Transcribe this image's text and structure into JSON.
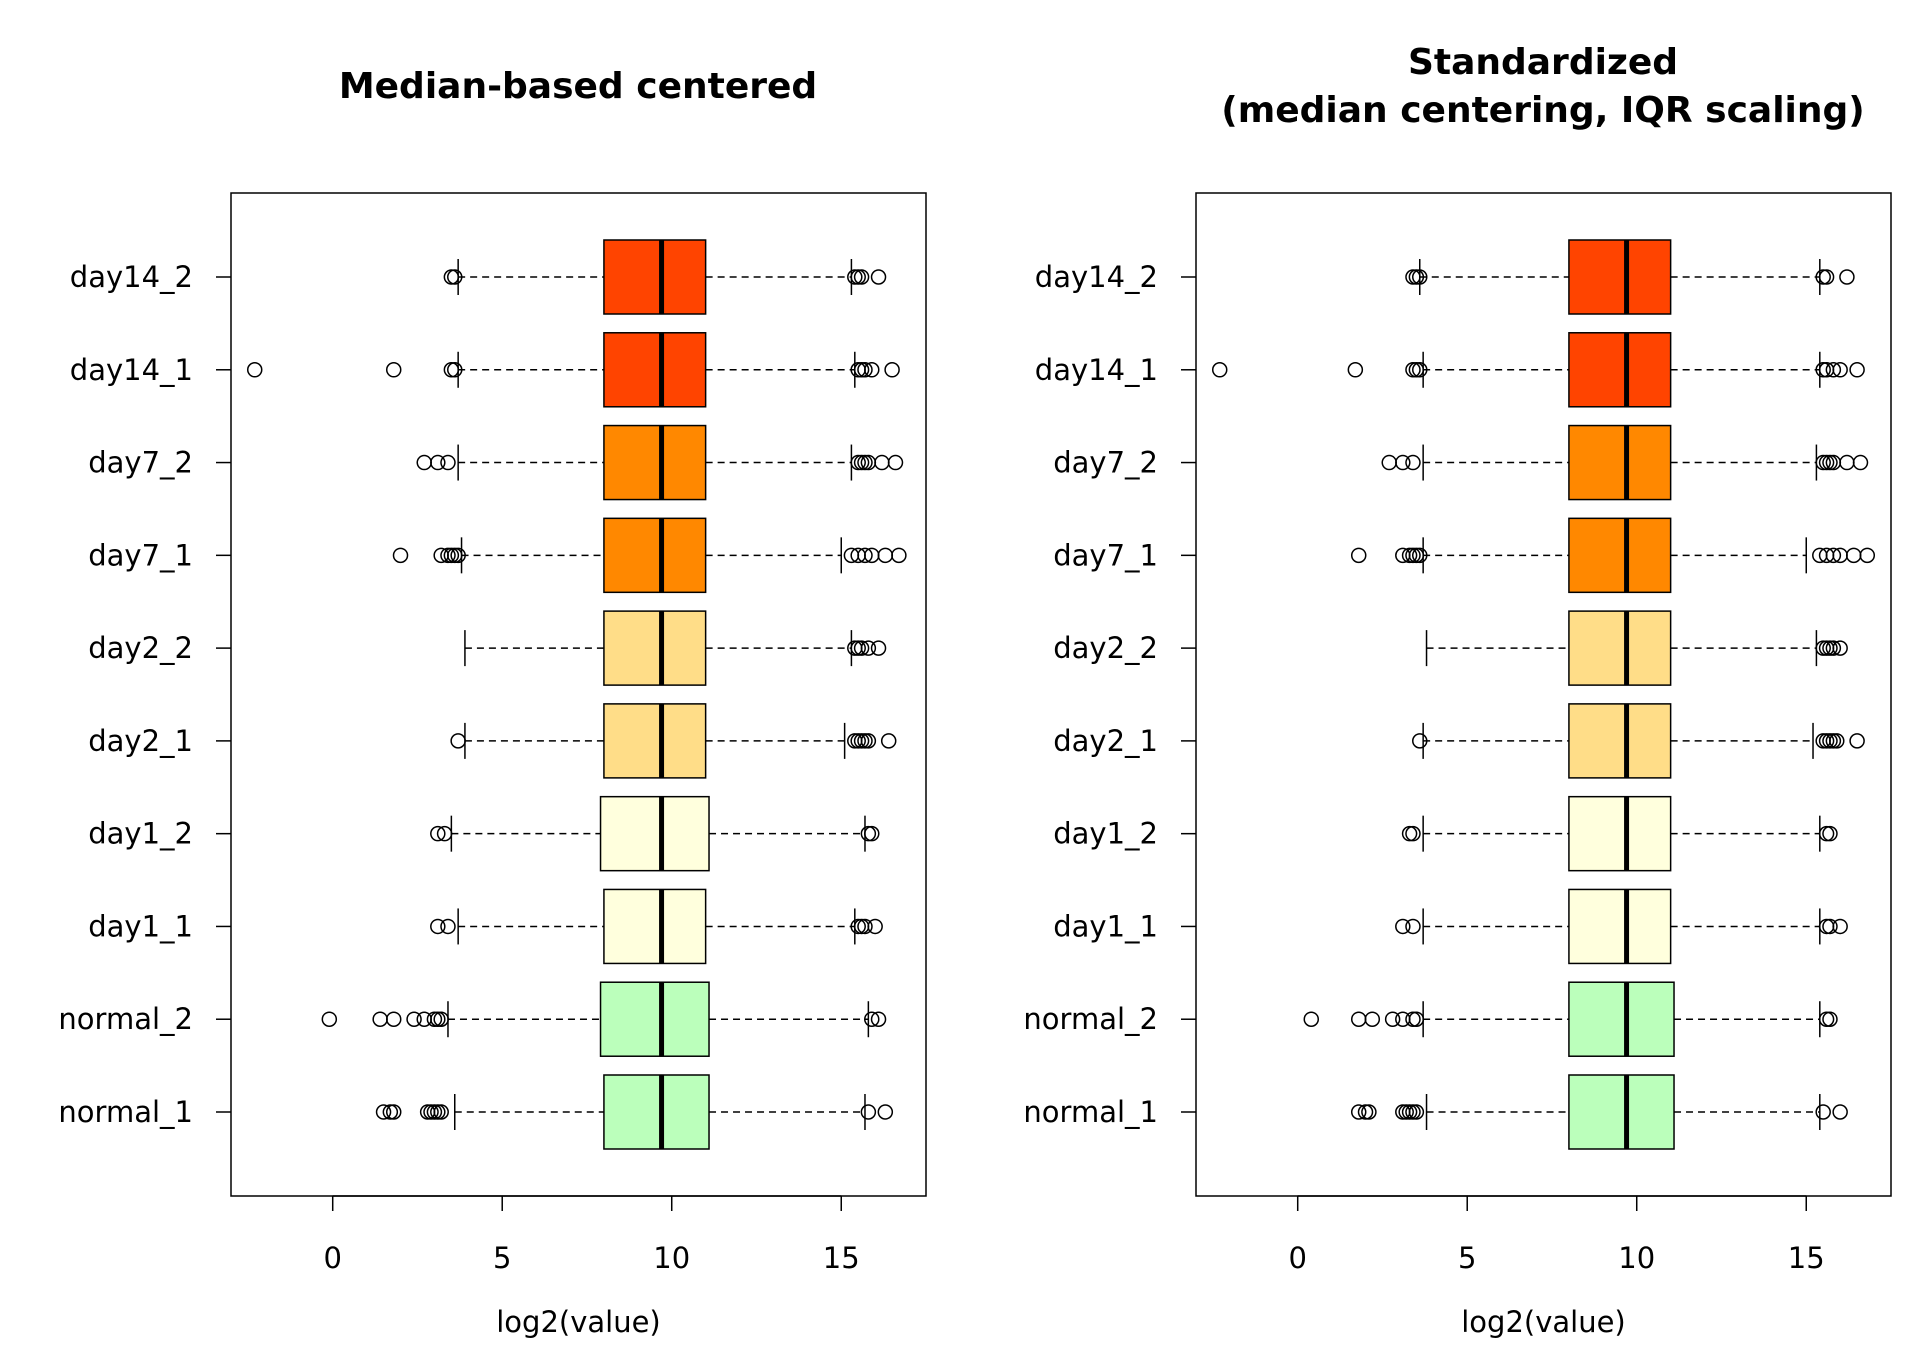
{
  "chart_data": [
    {
      "type": "boxplot",
      "orientation": "horizontal",
      "title": [
        "Median-based centered"
      ],
      "xlabel": "log2(value)",
      "xlim": [
        -3,
        17.5
      ],
      "xticks": [
        0,
        5,
        10,
        15
      ],
      "grid": false,
      "categories": [
        "normal_1",
        "normal_2",
        "day1_1",
        "day1_2",
        "day2_1",
        "day2_2",
        "day7_1",
        "day7_2",
        "day14_1",
        "day14_2"
      ],
      "colors": [
        "#bbffbb",
        "#bbffbb",
        "#ffffdd",
        "#ffffdd",
        "#ffdd88",
        "#ffdd88",
        "#ff8800",
        "#ff8800",
        "#ff4400",
        "#ff4400"
      ],
      "boxes": [
        {
          "label": "normal_1",
          "whisker_low": 3.6,
          "q1": 8.0,
          "median": 9.7,
          "q3": 11.1,
          "whisker_high": 15.7,
          "outliers": [
            1.5,
            1.7,
            1.8,
            2.8,
            2.9,
            3.0,
            3.1,
            3.2,
            15.8,
            16.3
          ]
        },
        {
          "label": "normal_2",
          "whisker_low": 3.4,
          "q1": 7.9,
          "median": 9.7,
          "q3": 11.1,
          "whisker_high": 15.8,
          "outliers": [
            -0.1,
            1.4,
            1.8,
            2.4,
            2.7,
            3.0,
            3.1,
            3.2,
            15.9,
            16.1
          ]
        },
        {
          "label": "day1_1",
          "whisker_low": 3.7,
          "q1": 8.0,
          "median": 9.7,
          "q3": 11.0,
          "whisker_high": 15.4,
          "outliers": [
            3.1,
            3.4,
            15.5,
            15.6,
            15.7,
            16.0
          ]
        },
        {
          "label": "day1_2",
          "whisker_low": 3.5,
          "q1": 7.9,
          "median": 9.7,
          "q3": 11.1,
          "whisker_high": 15.7,
          "outliers": [
            3.1,
            3.3,
            15.8,
            15.9
          ]
        },
        {
          "label": "day2_1",
          "whisker_low": 3.9,
          "q1": 8.0,
          "median": 9.7,
          "q3": 11.0,
          "whisker_high": 15.1,
          "outliers": [
            3.7,
            15.4,
            15.5,
            15.6,
            15.7,
            15.8,
            16.4
          ]
        },
        {
          "label": "day2_2",
          "whisker_low": 3.9,
          "q1": 8.0,
          "median": 9.7,
          "q3": 11.0,
          "whisker_high": 15.3,
          "outliers": [
            15.4,
            15.5,
            15.6,
            15.8,
            16.1
          ]
        },
        {
          "label": "day7_1",
          "whisker_low": 3.8,
          "q1": 8.0,
          "median": 9.7,
          "q3": 11.0,
          "whisker_high": 15.0,
          "outliers": [
            2.0,
            3.2,
            3.4,
            3.5,
            3.6,
            3.7,
            15.3,
            15.5,
            15.7,
            15.9,
            16.3,
            16.7
          ]
        },
        {
          "label": "day7_2",
          "whisker_low": 3.7,
          "q1": 8.0,
          "median": 9.7,
          "q3": 11.0,
          "whisker_high": 15.3,
          "outliers": [
            2.7,
            3.1,
            3.4,
            15.5,
            15.6,
            15.7,
            15.8,
            16.2,
            16.6
          ]
        },
        {
          "label": "day14_1",
          "whisker_low": 3.7,
          "q1": 8.0,
          "median": 9.7,
          "q3": 11.0,
          "whisker_high": 15.4,
          "outliers": [
            -2.3,
            1.8,
            3.5,
            3.6,
            15.5,
            15.6,
            15.7,
            15.9,
            16.5
          ]
        },
        {
          "label": "day14_2",
          "whisker_low": 3.7,
          "q1": 8.0,
          "median": 9.7,
          "q3": 11.0,
          "whisker_high": 15.3,
          "outliers": [
            3.5,
            3.6,
            15.4,
            15.5,
            15.6,
            16.1
          ]
        }
      ]
    },
    {
      "type": "boxplot",
      "orientation": "horizontal",
      "title": [
        "Standardized",
        "(median centering, IQR scaling)"
      ],
      "xlabel": "log2(value)",
      "xlim": [
        -3,
        17.5
      ],
      "xticks": [
        0,
        5,
        10,
        15
      ],
      "grid": false,
      "categories": [
        "normal_1",
        "normal_2",
        "day1_1",
        "day1_2",
        "day2_1",
        "day2_2",
        "day7_1",
        "day7_2",
        "day14_1",
        "day14_2"
      ],
      "colors": [
        "#bbffbb",
        "#bbffbb",
        "#ffffdd",
        "#ffffdd",
        "#ffdd88",
        "#ffdd88",
        "#ff8800",
        "#ff8800",
        "#ff4400",
        "#ff4400"
      ],
      "boxes": [
        {
          "label": "normal_1",
          "whisker_low": 3.8,
          "q1": 8.0,
          "median": 9.7,
          "q3": 11.1,
          "whisker_high": 15.4,
          "outliers": [
            1.8,
            2.0,
            2.1,
            3.1,
            3.2,
            3.3,
            3.4,
            3.5,
            15.5,
            16.0
          ]
        },
        {
          "label": "normal_2",
          "whisker_low": 3.7,
          "q1": 8.0,
          "median": 9.7,
          "q3": 11.1,
          "whisker_high": 15.4,
          "outliers": [
            0.4,
            1.8,
            2.2,
            2.8,
            3.1,
            3.4,
            3.5,
            15.6,
            15.7
          ]
        },
        {
          "label": "day1_1",
          "whisker_low": 3.7,
          "q1": 8.0,
          "median": 9.7,
          "q3": 11.0,
          "whisker_high": 15.4,
          "outliers": [
            3.1,
            3.4,
            15.6,
            15.7,
            16.0
          ]
        },
        {
          "label": "day1_2",
          "whisker_low": 3.7,
          "q1": 8.0,
          "median": 9.7,
          "q3": 11.0,
          "whisker_high": 15.4,
          "outliers": [
            3.3,
            3.4,
            15.6,
            15.7
          ]
        },
        {
          "label": "day2_1",
          "whisker_low": 3.7,
          "q1": 8.0,
          "median": 9.7,
          "q3": 11.0,
          "whisker_high": 15.2,
          "outliers": [
            3.6,
            15.5,
            15.6,
            15.7,
            15.8,
            15.9,
            16.5
          ]
        },
        {
          "label": "day2_2",
          "whisker_low": 3.8,
          "q1": 8.0,
          "median": 9.7,
          "q3": 11.0,
          "whisker_high": 15.3,
          "outliers": [
            15.5,
            15.6,
            15.7,
            15.8,
            16.0
          ]
        },
        {
          "label": "day7_1",
          "whisker_low": 3.7,
          "q1": 8.0,
          "median": 9.7,
          "q3": 11.0,
          "whisker_high": 15.0,
          "outliers": [
            1.8,
            3.1,
            3.3,
            3.4,
            3.5,
            3.6,
            15.4,
            15.6,
            15.8,
            16.0,
            16.4,
            16.8
          ]
        },
        {
          "label": "day7_2",
          "whisker_low": 3.7,
          "q1": 8.0,
          "median": 9.7,
          "q3": 11.0,
          "whisker_high": 15.3,
          "outliers": [
            2.7,
            3.1,
            3.4,
            15.5,
            15.6,
            15.7,
            15.8,
            16.2,
            16.6
          ]
        },
        {
          "label": "day14_1",
          "whisker_low": 3.7,
          "q1": 8.0,
          "median": 9.7,
          "q3": 11.0,
          "whisker_high": 15.4,
          "outliers": [
            -2.3,
            1.7,
            3.4,
            3.5,
            3.6,
            15.5,
            15.6,
            15.8,
            16.0,
            16.5
          ]
        },
        {
          "label": "day14_2",
          "whisker_low": 3.6,
          "q1": 8.0,
          "median": 9.7,
          "q3": 11.0,
          "whisker_high": 15.4,
          "outliers": [
            3.4,
            3.5,
            3.6,
            15.5,
            15.6,
            16.2
          ]
        }
      ]
    }
  ]
}
